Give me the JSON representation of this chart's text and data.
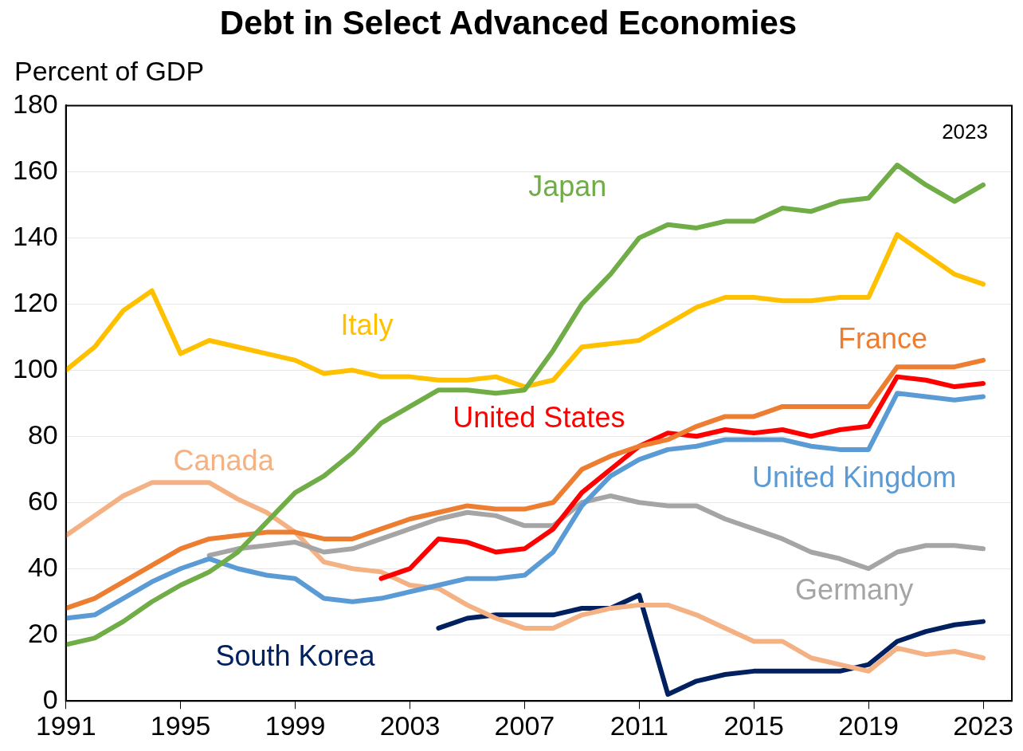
{
  "chart_data": {
    "type": "line",
    "title": "Debt in Select Advanced Economies",
    "ylabel": "Percent of GDP",
    "x": [
      1991,
      1992,
      1993,
      1994,
      1995,
      1996,
      1997,
      1998,
      1999,
      2000,
      2001,
      2002,
      2003,
      2004,
      2005,
      2006,
      2007,
      2008,
      2009,
      2010,
      2011,
      2012,
      2013,
      2014,
      2015,
      2016,
      2017,
      2018,
      2019,
      2020,
      2021,
      2022,
      2023
    ],
    "xlim": [
      1991,
      2024
    ],
    "xticks": [
      1991,
      1995,
      1999,
      2003,
      2007,
      2011,
      2015,
      2019,
      2023
    ],
    "ylim": [
      0,
      180
    ],
    "yticks": [
      0,
      20,
      40,
      60,
      80,
      100,
      120,
      140,
      160,
      180
    ],
    "grid": "y",
    "legend": false,
    "marker": "none",
    "line_style": "solid",
    "annotations": [
      "2023"
    ],
    "series": [
      {
        "name": "Japan",
        "color": "#70ad47",
        "values": [
          17,
          19,
          24,
          30,
          35,
          39,
          45,
          54,
          63,
          68,
          75,
          84,
          89,
          94,
          94,
          93,
          94,
          106,
          120,
          129,
          140,
          144,
          143,
          145,
          145,
          149,
          148,
          151,
          152,
          162,
          156,
          151,
          156
        ]
      },
      {
        "name": "Italy",
        "color": "#ffc000",
        "values": [
          100,
          107,
          118,
          124,
          105,
          109,
          107,
          105,
          103,
          99,
          100,
          98,
          98,
          97,
          97,
          98,
          95,
          97,
          107,
          108,
          109,
          114,
          119,
          122,
          122,
          121,
          121,
          122,
          122,
          141,
          135,
          129,
          126
        ]
      },
      {
        "name": "France",
        "color": "#ed7d31",
        "values": [
          28,
          31,
          36,
          41,
          46,
          49,
          50,
          51,
          51,
          49,
          49,
          52,
          55,
          57,
          59,
          58,
          58,
          60,
          70,
          74,
          77,
          79,
          83,
          86,
          86,
          89,
          89,
          89,
          89,
          101,
          101,
          101,
          103
        ]
      },
      {
        "name": "United States",
        "color": "#ff0000",
        "values": [
          null,
          null,
          null,
          null,
          null,
          null,
          null,
          null,
          null,
          null,
          null,
          37,
          40,
          49,
          48,
          45,
          46,
          52,
          63,
          70,
          77,
          81,
          80,
          82,
          81,
          82,
          80,
          82,
          83,
          98,
          97,
          95,
          96
        ]
      },
      {
        "name": "United Kingdom",
        "color": "#5b9bd5",
        "values": [
          25,
          26,
          31,
          36,
          40,
          43,
          40,
          38,
          37,
          31,
          30,
          31,
          33,
          35,
          37,
          37,
          38,
          45,
          59,
          68,
          73,
          76,
          77,
          79,
          79,
          79,
          77,
          76,
          76,
          93,
          92,
          91,
          92
        ]
      },
      {
        "name": "Germany",
        "color": "#a5a5a5",
        "values": [
          null,
          null,
          null,
          null,
          null,
          44,
          46,
          47,
          48,
          45,
          46,
          49,
          52,
          55,
          57,
          56,
          53,
          53,
          60,
          62,
          60,
          59,
          59,
          55,
          52,
          49,
          45,
          43,
          40,
          45,
          47,
          47,
          46
        ]
      },
      {
        "name": "Canada",
        "color": "#f4b183",
        "values": [
          50,
          56,
          62,
          66,
          66,
          66,
          61,
          57,
          51,
          42,
          40,
          39,
          35,
          34,
          29,
          25,
          22,
          22,
          26,
          28,
          29,
          29,
          26,
          22,
          18,
          18,
          13,
          11,
          9,
          16,
          14,
          15,
          13
        ]
      },
      {
        "name": "South Korea",
        "color": "#002060",
        "values": [
          null,
          null,
          null,
          null,
          null,
          null,
          null,
          null,
          null,
          null,
          null,
          null,
          null,
          22,
          25,
          26,
          26,
          26,
          28,
          28,
          32,
          2,
          6,
          8,
          9,
          9,
          9,
          9,
          11,
          18,
          21,
          23,
          24
        ]
      }
    ]
  }
}
